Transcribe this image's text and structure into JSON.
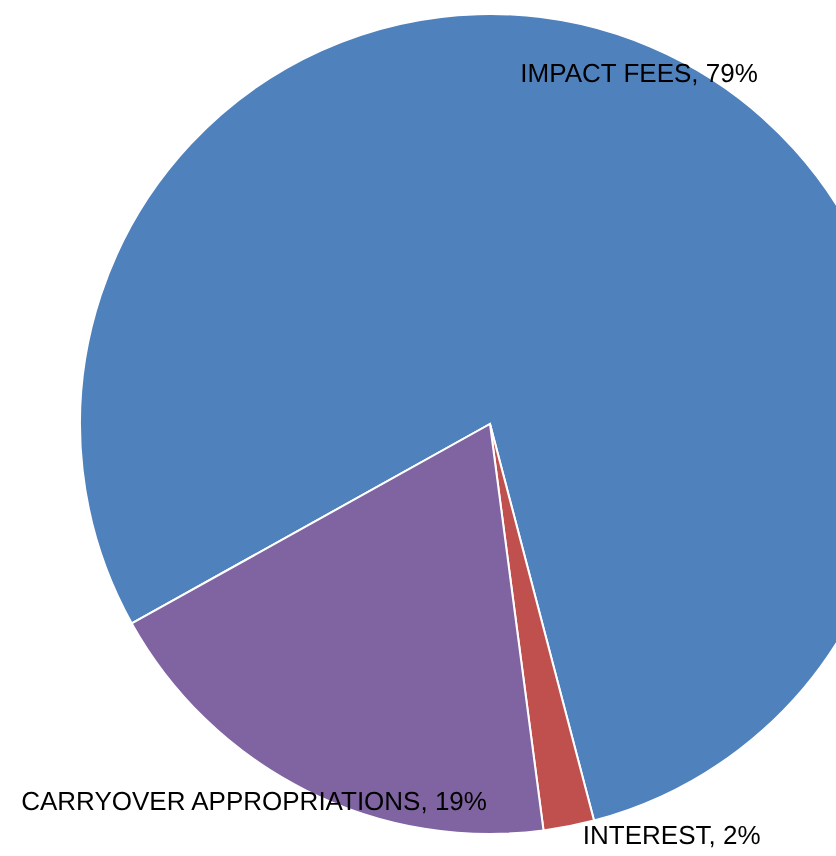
{
  "chart_data": {
    "type": "pie",
    "categories": [
      "IMPACT FEES",
      "INTEREST",
      "CARRYOVER APPROPRIATIONS"
    ],
    "values": [
      79,
      2,
      19
    ],
    "colors": [
      "#4f81bd",
      "#c0504d",
      "#8064a2"
    ],
    "value_labels": [
      "79%",
      "2%",
      "19%"
    ]
  }
}
